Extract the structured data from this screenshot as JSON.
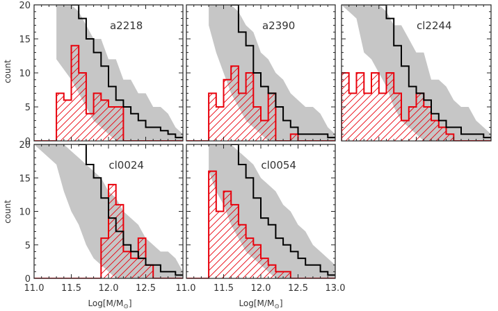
{
  "chart_data": [
    {
      "type": "histogram",
      "panel": "a2218",
      "label": "a2218",
      "xlim": [
        11.0,
        13.0
      ],
      "ylim": [
        0,
        20
      ],
      "bin_edges": [
        11.3,
        11.4,
        11.5,
        11.6,
        11.7,
        11.8,
        11.9,
        12.0,
        12.1,
        12.2,
        12.3,
        12.4,
        12.5,
        12.6,
        12.7,
        12.8,
        12.9,
        13.0
      ],
      "red_counts": [
        7,
        6,
        14,
        10,
        4,
        7,
        6,
        5,
        5,
        0,
        0,
        0,
        0,
        0,
        0,
        0,
        0
      ],
      "black_steps": [
        [
          11.5,
          20
        ],
        [
          11.6,
          18
        ],
        [
          11.7,
          15
        ],
        [
          11.8,
          13
        ],
        [
          11.9,
          11
        ],
        [
          12.0,
          8
        ],
        [
          12.1,
          6
        ],
        [
          12.2,
          5
        ],
        [
          12.3,
          4
        ],
        [
          12.4,
          3
        ],
        [
          12.5,
          2
        ],
        [
          12.6,
          2
        ],
        [
          12.7,
          1.5
        ],
        [
          12.8,
          1
        ],
        [
          12.9,
          0.5
        ]
      ],
      "band_upper": [
        [
          11.3,
          20
        ],
        [
          11.5,
          20
        ],
        [
          11.6,
          19
        ],
        [
          11.7,
          17
        ],
        [
          11.8,
          15
        ],
        [
          11.9,
          15
        ],
        [
          12.0,
          12
        ],
        [
          12.1,
          12
        ],
        [
          12.2,
          9
        ],
        [
          12.3,
          9
        ],
        [
          12.4,
          7
        ],
        [
          12.5,
          7
        ],
        [
          12.6,
          5
        ],
        [
          12.7,
          5
        ],
        [
          12.8,
          4
        ],
        [
          12.9,
          2
        ],
        [
          13.0,
          1
        ]
      ],
      "band_lower": [
        [
          11.3,
          12
        ],
        [
          11.5,
          9
        ],
        [
          11.6,
          7
        ],
        [
          11.7,
          5
        ],
        [
          11.8,
          3
        ],
        [
          11.9,
          2
        ],
        [
          12.0,
          1
        ],
        [
          12.1,
          0
        ],
        [
          12.2,
          0
        ],
        [
          12.3,
          0
        ],
        [
          12.4,
          0
        ],
        [
          12.5,
          0
        ],
        [
          12.6,
          0
        ],
        [
          12.7,
          0
        ],
        [
          12.8,
          0
        ],
        [
          12.9,
          0
        ],
        [
          13.0,
          0
        ]
      ]
    },
    {
      "type": "histogram",
      "panel": "a2390",
      "label": "a2390",
      "xlim": [
        11.0,
        13.0
      ],
      "ylim": [
        0,
        20
      ],
      "bin_edges": [
        11.3,
        11.4,
        11.5,
        11.6,
        11.7,
        11.8,
        11.9,
        12.0,
        12.1,
        12.2,
        12.3,
        12.4,
        12.5,
        12.6,
        12.7,
        12.8,
        12.9,
        13.0
      ],
      "red_counts": [
        7,
        5,
        9,
        11,
        7,
        10,
        5,
        3,
        7,
        0,
        0,
        1,
        0,
        0,
        0,
        0,
        0
      ],
      "black_steps": [
        [
          11.6,
          20
        ],
        [
          11.7,
          16
        ],
        [
          11.8,
          14
        ],
        [
          11.9,
          10
        ],
        [
          12.0,
          8
        ],
        [
          12.1,
          7
        ],
        [
          12.2,
          5
        ],
        [
          12.3,
          3
        ],
        [
          12.4,
          2
        ],
        [
          12.5,
          1
        ],
        [
          12.6,
          1
        ],
        [
          12.7,
          1
        ],
        [
          12.8,
          1
        ],
        [
          12.9,
          0.5
        ]
      ],
      "band_upper": [
        [
          11.3,
          20
        ],
        [
          11.6,
          20
        ],
        [
          11.7,
          19
        ],
        [
          11.8,
          17
        ],
        [
          11.9,
          16
        ],
        [
          12.0,
          13
        ],
        [
          12.1,
          12
        ],
        [
          12.2,
          10
        ],
        [
          12.3,
          9
        ],
        [
          12.4,
          7
        ],
        [
          12.5,
          6
        ],
        [
          12.6,
          5
        ],
        [
          12.7,
          5
        ],
        [
          12.8,
          4
        ],
        [
          12.9,
          2
        ],
        [
          13.0,
          1
        ]
      ],
      "band_lower": [
        [
          11.3,
          17
        ],
        [
          11.4,
          13
        ],
        [
          11.5,
          10
        ],
        [
          11.6,
          7
        ],
        [
          11.7,
          5
        ],
        [
          11.8,
          3
        ],
        [
          11.9,
          2
        ],
        [
          12.0,
          1
        ],
        [
          12.1,
          0
        ],
        [
          12.2,
          0
        ],
        [
          12.3,
          0
        ],
        [
          12.4,
          0
        ],
        [
          12.5,
          0
        ],
        [
          12.6,
          0
        ],
        [
          12.7,
          0
        ],
        [
          12.8,
          0
        ],
        [
          12.9,
          0
        ],
        [
          13.0,
          0
        ]
      ]
    },
    {
      "type": "histogram",
      "panel": "cl2244",
      "label": "cl2244",
      "xlim": [
        11.0,
        13.0
      ],
      "ylim": [
        0,
        20
      ],
      "bin_edges": [
        11.0,
        11.1,
        11.2,
        11.3,
        11.4,
        11.5,
        11.6,
        11.7,
        11.8,
        11.9,
        12.0,
        12.1,
        12.2,
        12.3,
        12.4,
        12.5,
        12.6,
        12.7,
        12.8,
        12.9,
        13.0
      ],
      "red_counts": [
        10,
        7,
        10,
        7,
        10,
        7,
        10,
        7,
        3,
        5,
        7,
        5,
        3,
        2,
        1,
        0,
        0,
        0,
        0,
        0
      ],
      "black_steps": [
        [
          11.5,
          20
        ],
        [
          11.6,
          18
        ],
        [
          11.7,
          14
        ],
        [
          11.8,
          11
        ],
        [
          11.9,
          8
        ],
        [
          12.0,
          7
        ],
        [
          12.1,
          6
        ],
        [
          12.2,
          4
        ],
        [
          12.3,
          3
        ],
        [
          12.4,
          2
        ],
        [
          12.5,
          2
        ],
        [
          12.6,
          1
        ],
        [
          12.7,
          1
        ],
        [
          12.8,
          1
        ],
        [
          12.9,
          0.5
        ]
      ],
      "band_upper": [
        [
          11.0,
          20
        ],
        [
          11.5,
          20
        ],
        [
          11.6,
          19
        ],
        [
          11.7,
          17
        ],
        [
          11.8,
          17
        ],
        [
          11.9,
          15
        ],
        [
          12.0,
          13
        ],
        [
          12.1,
          13
        ],
        [
          12.2,
          9
        ],
        [
          12.3,
          9
        ],
        [
          12.4,
          8
        ],
        [
          12.5,
          6
        ],
        [
          12.6,
          5
        ],
        [
          12.7,
          5
        ],
        [
          12.8,
          3
        ],
        [
          12.9,
          2
        ],
        [
          13.0,
          1
        ]
      ],
      "band_lower": [
        [
          11.0,
          20
        ],
        [
          11.2,
          18
        ],
        [
          11.3,
          13
        ],
        [
          11.4,
          12
        ],
        [
          11.5,
          10
        ],
        [
          11.6,
          8
        ],
        [
          11.7,
          5
        ],
        [
          11.8,
          3
        ],
        [
          11.9,
          2
        ],
        [
          12.0,
          1
        ],
        [
          12.1,
          0
        ],
        [
          12.2,
          0
        ],
        [
          12.3,
          0
        ],
        [
          12.4,
          0
        ],
        [
          12.5,
          0
        ],
        [
          12.6,
          0
        ],
        [
          12.7,
          0
        ],
        [
          12.8,
          0
        ],
        [
          12.9,
          0
        ],
        [
          13.0,
          0
        ]
      ]
    },
    {
      "type": "histogram",
      "panel": "cl0024",
      "label": "cl0024",
      "xlim": [
        11.0,
        13.0
      ],
      "ylim": [
        0,
        20
      ],
      "bin_edges": [
        11.0,
        11.1,
        11.2,
        11.3,
        11.4,
        11.5,
        11.6,
        11.7,
        11.8,
        11.9,
        12.0,
        12.1,
        12.2,
        12.3,
        12.4,
        12.5,
        12.6,
        12.7,
        12.8,
        12.9,
        13.0
      ],
      "red_counts": [
        0,
        0,
        0,
        0,
        0,
        0,
        0,
        0,
        0,
        6,
        14,
        11,
        4,
        3,
        6,
        2,
        0,
        0,
        0,
        0
      ],
      "black_steps": [
        [
          11.6,
          20
        ],
        [
          11.7,
          17
        ],
        [
          11.8,
          15
        ],
        [
          11.9,
          12
        ],
        [
          12.0,
          9
        ],
        [
          12.1,
          7
        ],
        [
          12.2,
          5
        ],
        [
          12.3,
          4
        ],
        [
          12.4,
          3
        ],
        [
          12.5,
          2
        ],
        [
          12.6,
          2
        ],
        [
          12.7,
          1
        ],
        [
          12.8,
          1
        ],
        [
          12.9,
          0.5
        ]
      ],
      "band_upper": [
        [
          11.0,
          20
        ],
        [
          11.4,
          20
        ],
        [
          11.5,
          19
        ],
        [
          11.6,
          18
        ],
        [
          11.7,
          17
        ],
        [
          11.8,
          16
        ],
        [
          11.9,
          15
        ],
        [
          12.0,
          13
        ],
        [
          12.1,
          12
        ],
        [
          12.2,
          10
        ],
        [
          12.3,
          9
        ],
        [
          12.4,
          8
        ],
        [
          12.5,
          6
        ],
        [
          12.6,
          5
        ],
        [
          12.7,
          4
        ],
        [
          12.8,
          4
        ],
        [
          12.9,
          3
        ],
        [
          13.0,
          1
        ]
      ],
      "band_lower": [
        [
          11.0,
          20
        ],
        [
          11.3,
          17
        ],
        [
          11.4,
          13
        ],
        [
          11.5,
          10
        ],
        [
          11.6,
          8
        ],
        [
          11.7,
          5
        ],
        [
          11.8,
          3
        ],
        [
          11.9,
          2
        ],
        [
          12.0,
          1
        ],
        [
          12.1,
          0
        ],
        [
          12.2,
          0
        ],
        [
          12.3,
          0
        ],
        [
          12.4,
          0
        ],
        [
          12.5,
          0
        ],
        [
          12.6,
          0
        ],
        [
          12.7,
          0
        ],
        [
          12.8,
          0
        ],
        [
          12.9,
          0
        ],
        [
          13.0,
          0
        ]
      ]
    },
    {
      "type": "histogram",
      "panel": "cl0054",
      "label": "cl0054",
      "xlim": [
        11.0,
        13.0
      ],
      "ylim": [
        0,
        20
      ],
      "bin_edges": [
        11.3,
        11.4,
        11.5,
        11.6,
        11.7,
        11.8,
        11.9,
        12.0,
        12.1,
        12.2,
        12.3,
        12.4,
        12.5,
        12.6,
        12.7,
        12.8,
        12.9,
        13.0
      ],
      "red_counts": [
        16,
        10,
        13,
        11,
        8,
        6,
        5,
        3,
        2,
        1,
        1,
        0,
        0,
        0,
        0,
        0,
        0
      ],
      "black_steps": [
        [
          11.6,
          20
        ],
        [
          11.7,
          17
        ],
        [
          11.8,
          15
        ],
        [
          11.9,
          12
        ],
        [
          12.0,
          9
        ],
        [
          12.1,
          8
        ],
        [
          12.2,
          6
        ],
        [
          12.3,
          5
        ],
        [
          12.4,
          4
        ],
        [
          12.5,
          3
        ],
        [
          12.6,
          2
        ],
        [
          12.7,
          2
        ],
        [
          12.8,
          1
        ],
        [
          12.9,
          0.5
        ]
      ],
      "band_upper": [
        [
          11.3,
          20
        ],
        [
          11.6,
          20
        ],
        [
          11.7,
          19
        ],
        [
          11.8,
          18
        ],
        [
          11.9,
          17
        ],
        [
          12.0,
          15
        ],
        [
          12.1,
          14
        ],
        [
          12.2,
          13
        ],
        [
          12.3,
          11
        ],
        [
          12.4,
          10
        ],
        [
          12.5,
          8
        ],
        [
          12.6,
          7
        ],
        [
          12.7,
          5
        ],
        [
          12.8,
          4
        ],
        [
          12.9,
          3
        ],
        [
          13.0,
          2
        ]
      ],
      "band_lower": [
        [
          11.3,
          16
        ],
        [
          11.4,
          13
        ],
        [
          11.5,
          11
        ],
        [
          11.6,
          8
        ],
        [
          11.7,
          6
        ],
        [
          11.8,
          4
        ],
        [
          11.9,
          3
        ],
        [
          12.0,
          2
        ],
        [
          12.1,
          1
        ],
        [
          12.2,
          0
        ],
        [
          12.3,
          0
        ],
        [
          12.4,
          0
        ],
        [
          12.5,
          0
        ],
        [
          12.6,
          0
        ],
        [
          12.7,
          0
        ],
        [
          12.8,
          0
        ],
        [
          12.9,
          0
        ],
        [
          13.0,
          0
        ]
      ]
    }
  ],
  "axes": {
    "ylabel": "count",
    "xlabel_text": "Log[M/M",
    "xlabel_sun": "⊙",
    "xlabel_close": "]",
    "y_ticks": [
      "0",
      "5",
      "10",
      "15",
      "20"
    ],
    "x_ticks_left": [
      "11.0",
      "11.5",
      "12.0",
      "12.5"
    ],
    "x_ticks_right": [
      "11.5",
      "12.0",
      "12.5",
      "13.0"
    ],
    "x_tick_end": "11.0"
  },
  "colors": {
    "band": "#c6c6c6",
    "red": "#e8000b",
    "black": "#000000",
    "axis": "#222222"
  }
}
